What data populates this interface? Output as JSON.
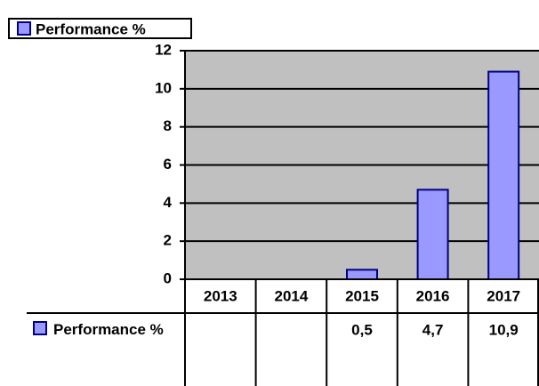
{
  "chart_data": {
    "type": "bar",
    "categories": [
      "2013",
      "2014",
      "2015",
      "2016",
      "2017"
    ],
    "series": [
      {
        "name": "Performance %",
        "color": "#9999ff",
        "values": [
          null,
          null,
          0.5,
          4.7,
          10.9
        ],
        "value_labels": [
          null,
          null,
          "0,5",
          "4,7",
          "10,9"
        ]
      }
    ],
    "ylim": [
      0,
      12
    ],
    "yticks": [
      0,
      2,
      4,
      6,
      8,
      10,
      12
    ],
    "grid": true,
    "plot_background": "#c0c0c0",
    "legend": "top-left"
  }
}
